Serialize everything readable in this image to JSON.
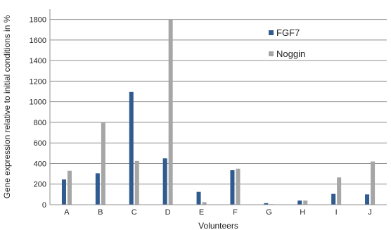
{
  "chart_data": {
    "type": "bar",
    "categories": [
      "A",
      "B",
      "C",
      "D",
      "E",
      "F",
      "G",
      "H",
      "I",
      "J"
    ],
    "series": [
      {
        "name": "FGF7",
        "color": "#2f5b8f",
        "values": [
          245,
          305,
          1095,
          450,
          125,
          335,
          15,
          40,
          105,
          100
        ]
      },
      {
        "name": "Noggin",
        "color": "#a6a6a6",
        "values": [
          330,
          800,
          425,
          1800,
          25,
          350,
          5,
          40,
          265,
          420
        ]
      }
    ],
    "xlabel": "Volunteers",
    "ylabel": "Gene expression relative to initial conditions in %",
    "ylim": [
      0,
      1900
    ],
    "yticks": [
      0,
      200,
      400,
      600,
      800,
      1000,
      1200,
      1400,
      1600,
      1800
    ],
    "grid": true,
    "legend_position": "top-right"
  }
}
